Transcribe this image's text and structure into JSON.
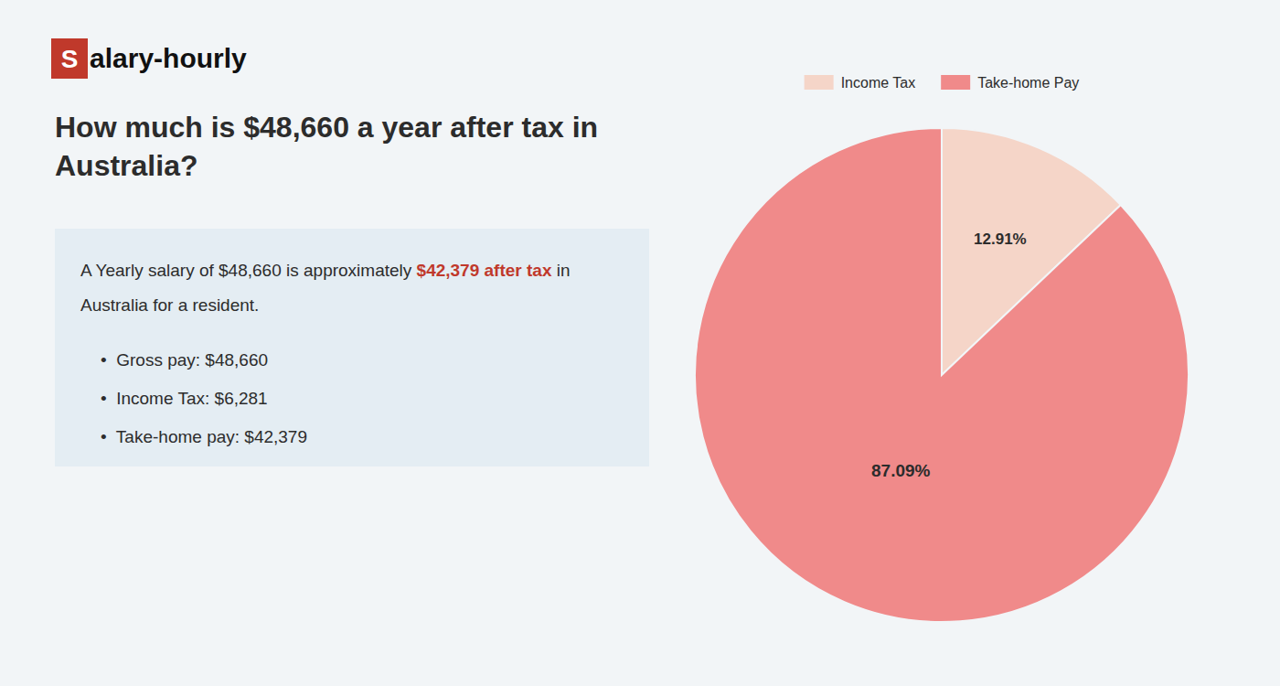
{
  "chart_data": {
    "type": "pie",
    "title": "How much is $48,660 a year after tax in\nAustralia?",
    "categories": [
      "Income Tax",
      "Take-home Pay"
    ],
    "values": [
      12.91,
      87.09
    ],
    "value_labels": [
      "12.91%",
      "87.09%"
    ],
    "colors": [
      "#f5d5c8",
      "#f08a8a"
    ],
    "data_labels": true,
    "legend": "top",
    "annotations": [
      {
        "text": "S",
        "color": "#c0392b"
      },
      {
        "text": "alary-hourly"
      },
      {
        "text": "A Yearly salary of $48,660 is approximately "
      },
      {
        "text": "$42,379 after tax",
        "color": "#c0392b"
      },
      {
        "text": " in"
      },
      {
        "text": "Australia for a resident."
      },
      {
        "text": "•  Gross pay: $48,660"
      },
      {
        "text": "•  Income Tax: $6,281"
      },
      {
        "text": "•  Take-home pay: $42,379"
      }
    ]
  }
}
